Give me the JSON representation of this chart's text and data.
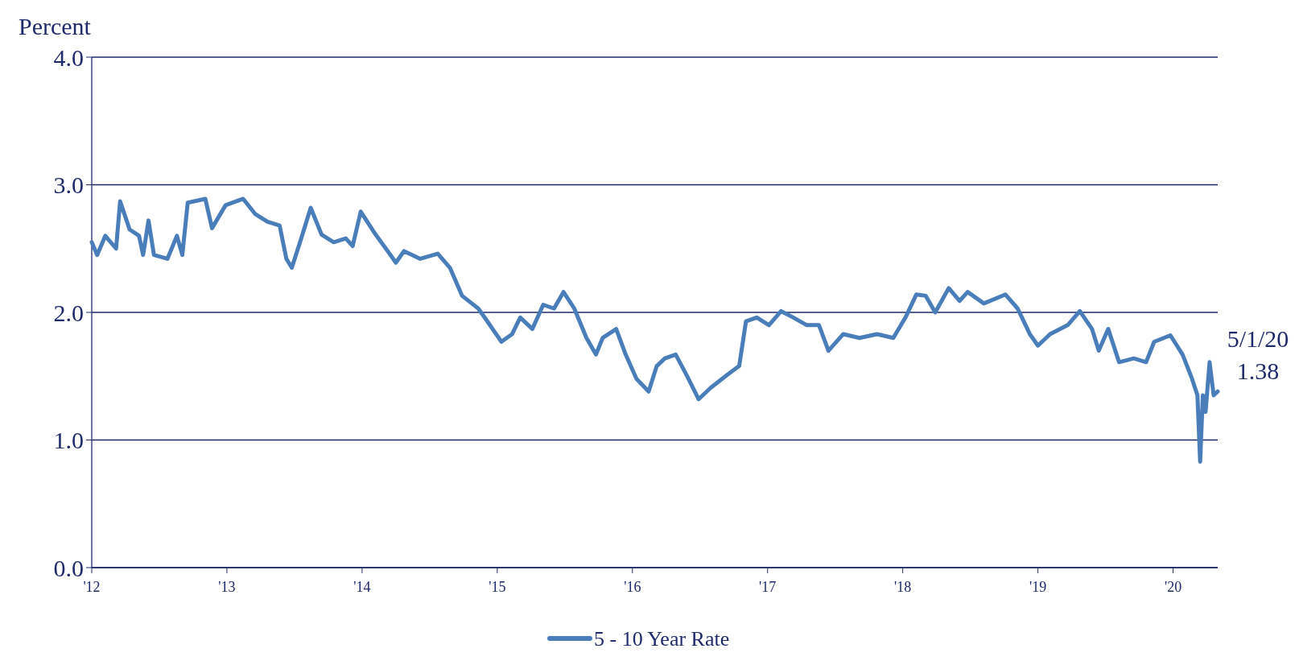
{
  "chart_data": {
    "type": "line",
    "ylabel": "Percent",
    "xlim": [
      2012,
      2020.33
    ],
    "xticks": [
      {
        "value": 2012,
        "label": "'12"
      },
      {
        "value": 2013,
        "label": "'13"
      },
      {
        "value": 2014,
        "label": "'14"
      },
      {
        "value": 2015,
        "label": "'15"
      },
      {
        "value": 2016,
        "label": "'16"
      },
      {
        "value": 2017,
        "label": "'17"
      },
      {
        "value": 2018,
        "label": "'18"
      },
      {
        "value": 2019,
        "label": "'19"
      },
      {
        "value": 2020,
        "label": "'20"
      }
    ],
    "ylim": [
      0,
      4
    ],
    "yticks": [
      {
        "value": 0,
        "label": "0.0"
      },
      {
        "value": 1,
        "label": "1.0"
      },
      {
        "value": 2,
        "label": "2.0"
      },
      {
        "value": 3,
        "label": "3.0"
      },
      {
        "value": 4,
        "label": "4.0"
      }
    ],
    "grid": "y",
    "legend": "bottom",
    "line_style": "solid",
    "marker": "none",
    "annotations": [
      {
        "text": "5/1/20\n1.38",
        "x": 2020.33,
        "y": 1.38
      }
    ],
    "series": [
      {
        "name": "5 - 10 Year Rate",
        "color": "#4a7ebb",
        "x": [
          2012.0,
          2012.04,
          2012.1,
          2012.18,
          2012.21,
          2012.28,
          2012.35,
          2012.38,
          2012.42,
          2012.46,
          2012.56,
          2012.63,
          2012.67,
          2012.71,
          2012.84,
          2012.89,
          2012.99,
          2013.12,
          2013.21,
          2013.3,
          2013.39,
          2013.44,
          2013.48,
          2013.55,
          2013.62,
          2013.7,
          2013.79,
          2013.88,
          2013.93,
          2013.99,
          2014.1,
          2014.19,
          2014.25,
          2014.31,
          2014.43,
          2014.56,
          2014.65,
          2014.74,
          2014.86,
          2014.92,
          2015.03,
          2015.11,
          2015.17,
          2015.26,
          2015.34,
          2015.42,
          2015.49,
          2015.57,
          2015.66,
          2015.73,
          2015.78,
          2015.88,
          2015.95,
          2016.03,
          2016.12,
          2016.18,
          2016.24,
          2016.32,
          2016.4,
          2016.49,
          2016.58,
          2016.7,
          2016.79,
          2016.84,
          2016.92,
          2017.01,
          2017.1,
          2017.19,
          2017.29,
          2017.38,
          2017.45,
          2017.56,
          2017.68,
          2017.81,
          2017.93,
          2018.02,
          2018.1,
          2018.17,
          2018.24,
          2018.34,
          2018.42,
          2018.48,
          2018.6,
          2018.76,
          2018.85,
          2018.94,
          2019.0,
          2019.09,
          2019.22,
          2019.31,
          2019.4,
          2019.45,
          2019.52,
          2019.6,
          2019.71,
          2019.8,
          2019.86,
          2019.98,
          2020.07,
          2020.14,
          2020.18,
          2020.2,
          2020.22,
          2020.24,
          2020.27,
          2020.3,
          2020.33
        ],
        "values": [
          2.55,
          2.45,
          2.6,
          2.5,
          2.87,
          2.65,
          2.6,
          2.45,
          2.72,
          2.45,
          2.42,
          2.6,
          2.45,
          2.86,
          2.89,
          2.66,
          2.84,
          2.89,
          2.77,
          2.71,
          2.68,
          2.42,
          2.35,
          2.58,
          2.82,
          2.61,
          2.55,
          2.58,
          2.52,
          2.79,
          2.61,
          2.48,
          2.39,
          2.48,
          2.42,
          2.46,
          2.35,
          2.13,
          2.03,
          1.94,
          1.77,
          1.83,
          1.96,
          1.87,
          2.06,
          2.03,
          2.16,
          2.03,
          1.8,
          1.67,
          1.8,
          1.87,
          1.67,
          1.48,
          1.38,
          1.58,
          1.64,
          1.67,
          1.51,
          1.32,
          1.41,
          1.51,
          1.58,
          1.93,
          1.96,
          1.9,
          2.01,
          1.96,
          1.9,
          1.9,
          1.7,
          1.83,
          1.8,
          1.83,
          1.8,
          1.96,
          2.14,
          2.13,
          2.0,
          2.19,
          2.09,
          2.16,
          2.07,
          2.14,
          2.03,
          1.83,
          1.74,
          1.83,
          1.9,
          2.01,
          1.87,
          1.7,
          1.87,
          1.61,
          1.64,
          1.61,
          1.77,
          1.82,
          1.67,
          1.48,
          1.35,
          0.83,
          1.35,
          1.22,
          1.61,
          1.35,
          1.38
        ]
      }
    ]
  }
}
